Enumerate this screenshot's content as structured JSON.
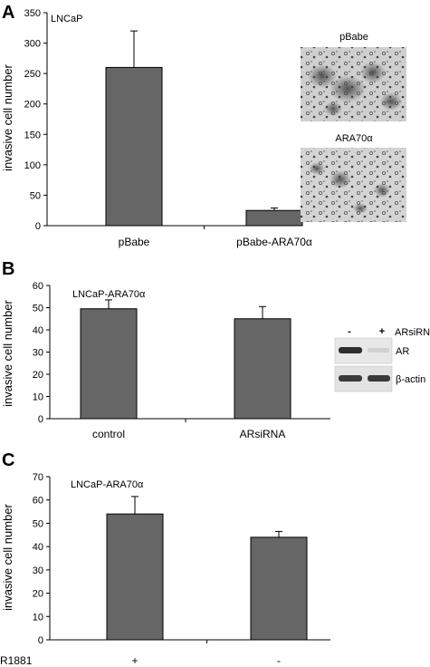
{
  "chart_data": [
    {
      "panel": "A",
      "type": "bar",
      "inset_label": "LNCaP",
      "ylabel": "invasive cell number",
      "ylim": [
        0,
        350
      ],
      "yticks": [
        0,
        50,
        100,
        150,
        200,
        250,
        300,
        350
      ],
      "categories": [
        "pBabe",
        "pBabe-ARA70α"
      ],
      "values": [
        260,
        25
      ],
      "errors": [
        60,
        4
      ],
      "bar_color": "#666666",
      "images": [
        {
          "label": "pBabe"
        },
        {
          "label": "ARA70α"
        }
      ]
    },
    {
      "panel": "B",
      "type": "bar",
      "inset_label": "LNCaP-ARA70α",
      "ylabel": "invasive cell number",
      "ylim": [
        0,
        60
      ],
      "yticks": [
        0,
        10,
        20,
        30,
        40,
        50,
        60
      ],
      "categories": [
        "control",
        "ARsiRNA"
      ],
      "values": [
        49.5,
        45
      ],
      "errors": [
        4,
        5.5
      ],
      "bar_color": "#666666",
      "blot": {
        "col_labels": [
          "-",
          "+"
        ],
        "col_header": "ARsiRNA",
        "rows": [
          "AR",
          "β-actin"
        ]
      }
    },
    {
      "panel": "C",
      "type": "bar",
      "inset_label": "LNCaP-ARA70α",
      "ylabel": "invasive cell number",
      "ylim": [
        0,
        70
      ],
      "yticks": [
        0,
        10,
        20,
        30,
        40,
        50,
        60,
        70
      ],
      "categories": [
        "+",
        "-"
      ],
      "values": [
        54,
        44
      ],
      "errors": [
        7.5,
        2.5
      ],
      "bar_color": "#666666",
      "row_label": "R1881"
    }
  ]
}
